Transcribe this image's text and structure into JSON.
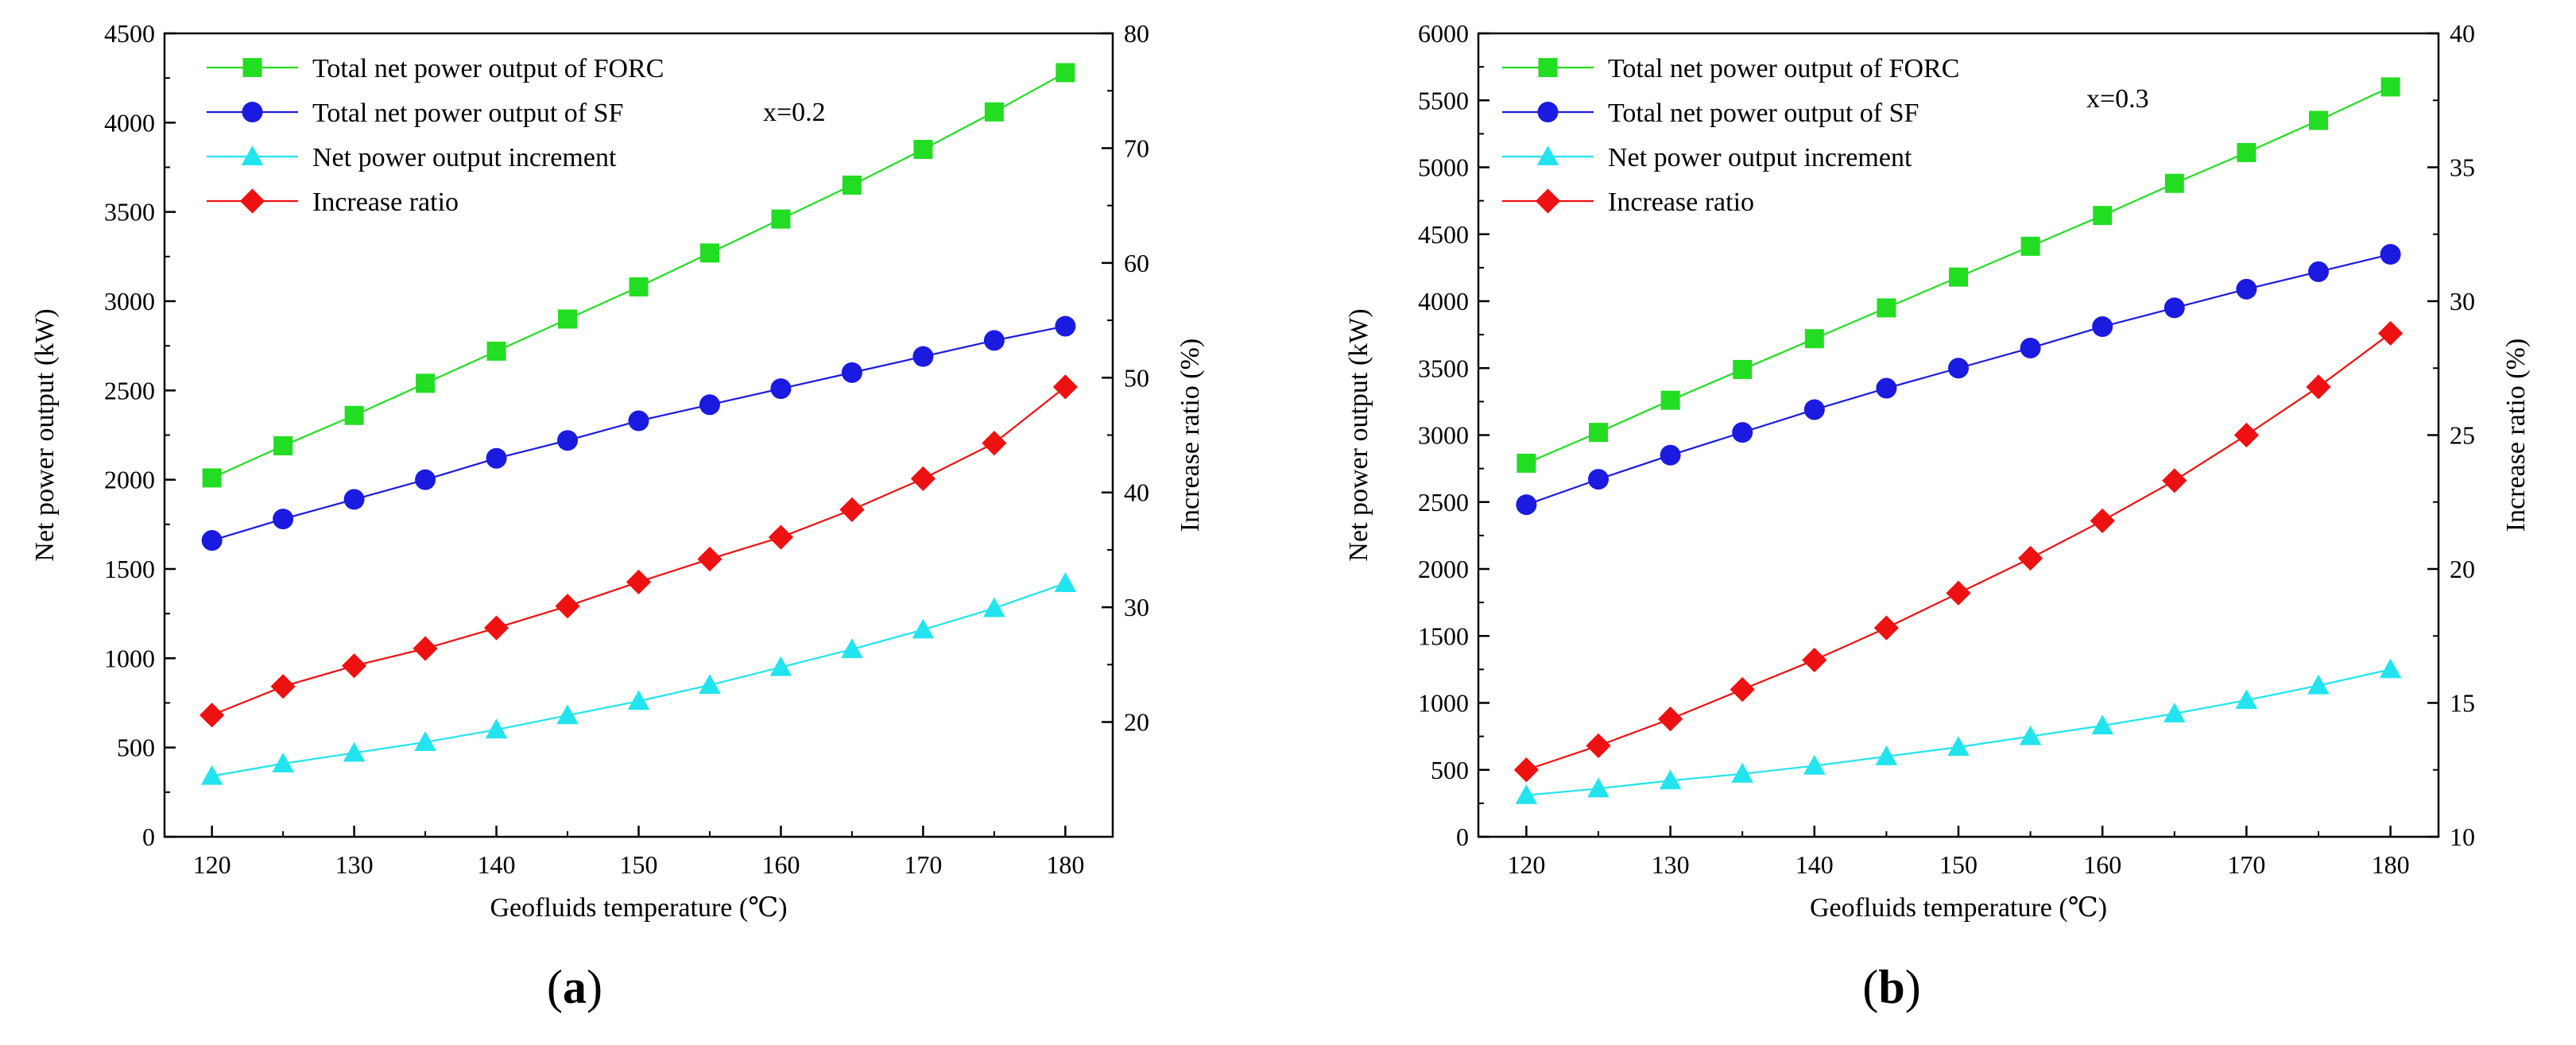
{
  "chart_data": [
    {
      "type": "line",
      "panel_label": {
        "open": "(",
        "letter": "a",
        "close": ")"
      },
      "annotation": "x=0.2",
      "xlabel": "Geofluids temperature (℃)",
      "ylabel": "Net power output (kW)",
      "y2label": "Increase ratio (%)",
      "x": [
        120,
        125,
        130,
        135,
        140,
        145,
        150,
        155,
        160,
        165,
        170,
        175,
        180
      ],
      "xlim": [
        120,
        180
      ],
      "xticks": [
        120,
        130,
        140,
        150,
        160,
        170,
        180
      ],
      "ylim": [
        0,
        4500
      ],
      "yticks": [
        0,
        500,
        1000,
        1500,
        2000,
        2500,
        3000,
        3500,
        4000,
        4500
      ],
      "y2lim": [
        10,
        80
      ],
      "y2ticks": [
        20,
        30,
        40,
        50,
        60,
        70,
        80
      ],
      "grid": false,
      "legend_position": "top-left",
      "series": [
        {
          "name": "Total net power output of FORC",
          "axis": "left",
          "marker": "square",
          "color": "#22dd22",
          "values": [
            2010,
            2190,
            2360,
            2540,
            2720,
            2900,
            3080,
            3270,
            3460,
            3650,
            3850,
            4060,
            4280
          ]
        },
        {
          "name": "Total net power output of SF",
          "axis": "left",
          "marker": "circle",
          "color": "#1a1ae0",
          "values": [
            1660,
            1780,
            1890,
            2000,
            2120,
            2220,
            2330,
            2420,
            2510,
            2600,
            2690,
            2780,
            2860
          ]
        },
        {
          "name": "Net power output increment",
          "axis": "left",
          "marker": "triangle",
          "color": "#22e4ef",
          "values": [
            340,
            410,
            470,
            530,
            600,
            680,
            760,
            850,
            950,
            1050,
            1160,
            1280,
            1420
          ]
        },
        {
          "name": "Increase ratio",
          "axis": "right",
          "marker": "diamond",
          "color": "#ee1111",
          "values": [
            20.6,
            23.1,
            24.9,
            26.4,
            28.2,
            30.1,
            32.2,
            34.2,
            36.1,
            38.5,
            41.2,
            44.3,
            49.2
          ]
        }
      ]
    },
    {
      "type": "line",
      "panel_label": {
        "open": "(",
        "letter": "b",
        "close": ")"
      },
      "annotation": "x=0.3",
      "xlabel": "Geofluids temperature (℃)",
      "ylabel": "Net power output (kW)",
      "y2label": "Increase ratio (%)",
      "x": [
        120,
        125,
        130,
        135,
        140,
        145,
        150,
        155,
        160,
        165,
        170,
        175,
        180
      ],
      "xlim": [
        120,
        180
      ],
      "xticks": [
        120,
        130,
        140,
        150,
        160,
        170,
        180
      ],
      "ylim": [
        0,
        6000
      ],
      "yticks": [
        0,
        500,
        1000,
        1500,
        2000,
        2500,
        3000,
        3500,
        4000,
        4500,
        5000,
        5500,
        6000
      ],
      "y2lim": [
        10,
        40
      ],
      "y2ticks": [
        10,
        15,
        20,
        25,
        30,
        35,
        40
      ],
      "grid": false,
      "legend_position": "top-left",
      "series": [
        {
          "name": "Total net power output of FORC",
          "axis": "left",
          "marker": "square",
          "color": "#22dd22",
          "values": [
            2790,
            3020,
            3260,
            3490,
            3720,
            3950,
            4180,
            4410,
            4640,
            4880,
            5110,
            5350,
            5600
          ]
        },
        {
          "name": "Total net power output of SF",
          "axis": "left",
          "marker": "circle",
          "color": "#1a1ae0",
          "values": [
            2480,
            2670,
            2850,
            3020,
            3190,
            3350,
            3500,
            3650,
            3810,
            3950,
            4090,
            4220,
            4350
          ]
        },
        {
          "name": "Net power output increment",
          "axis": "left",
          "marker": "triangle",
          "color": "#22e4ef",
          "values": [
            310,
            360,
            420,
            470,
            530,
            600,
            670,
            750,
            830,
            920,
            1020,
            1130,
            1250
          ]
        },
        {
          "name": "Increase ratio",
          "axis": "right",
          "marker": "diamond",
          "color": "#ee1111",
          "values": [
            12.5,
            13.4,
            14.4,
            15.5,
            16.6,
            17.8,
            19.1,
            20.4,
            21.8,
            23.3,
            25.0,
            26.8,
            28.8
          ]
        }
      ]
    }
  ]
}
